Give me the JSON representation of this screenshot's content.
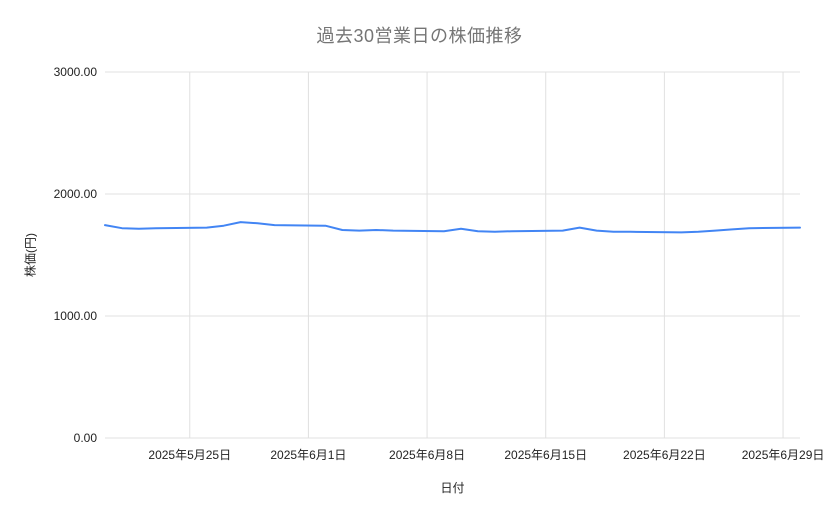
{
  "chart_data": {
    "type": "line",
    "title": "過去30営業日の株価推移",
    "xlabel": "日付",
    "ylabel": "株価(円)",
    "ylim": [
      0,
      3000
    ],
    "x_range": [
      "2025-05-20",
      "2025-06-30"
    ],
    "grid": true,
    "legend_position": "none",
    "line_color": "#4285f4",
    "grid_color": "#e0e0e0",
    "series": [
      {
        "name": "株価",
        "dates": [
          "2025-05-20",
          "2025-05-21",
          "2025-05-22",
          "2025-05-23",
          "2025-05-26",
          "2025-05-27",
          "2025-05-28",
          "2025-05-29",
          "2025-05-30",
          "2025-06-02",
          "2025-06-03",
          "2025-06-04",
          "2025-06-05",
          "2025-06-06",
          "2025-06-09",
          "2025-06-10",
          "2025-06-11",
          "2025-06-12",
          "2025-06-13",
          "2025-06-16",
          "2025-06-17",
          "2025-06-18",
          "2025-06-19",
          "2025-06-20",
          "2025-06-23",
          "2025-06-24",
          "2025-06-25",
          "2025-06-26",
          "2025-06-27",
          "2025-06-30"
        ],
        "values": [
          1745,
          1720,
          1715,
          1720,
          1725,
          1740,
          1770,
          1760,
          1745,
          1740,
          1705,
          1700,
          1705,
          1700,
          1695,
          1715,
          1695,
          1690,
          1695,
          1700,
          1725,
          1700,
          1690,
          1690,
          1685,
          1690,
          1700,
          1710,
          1720,
          1725
        ]
      }
    ],
    "y_ticks": [
      {
        "value": 0,
        "label": "0.00"
      },
      {
        "value": 1000,
        "label": "1000.00"
      },
      {
        "value": 2000,
        "label": "2000.00"
      },
      {
        "value": 3000,
        "label": "3000.00"
      }
    ],
    "x_ticks": [
      {
        "date": "2025-05-25",
        "label": "2025年5月25日"
      },
      {
        "date": "2025-06-01",
        "label": "2025年6月1日"
      },
      {
        "date": "2025-06-08",
        "label": "2025年6月8日"
      },
      {
        "date": "2025-06-15",
        "label": "2025年6月15日"
      },
      {
        "date": "2025-06-22",
        "label": "2025年6月22日"
      },
      {
        "date": "2025-06-29",
        "label": "2025年6月29日"
      }
    ]
  }
}
